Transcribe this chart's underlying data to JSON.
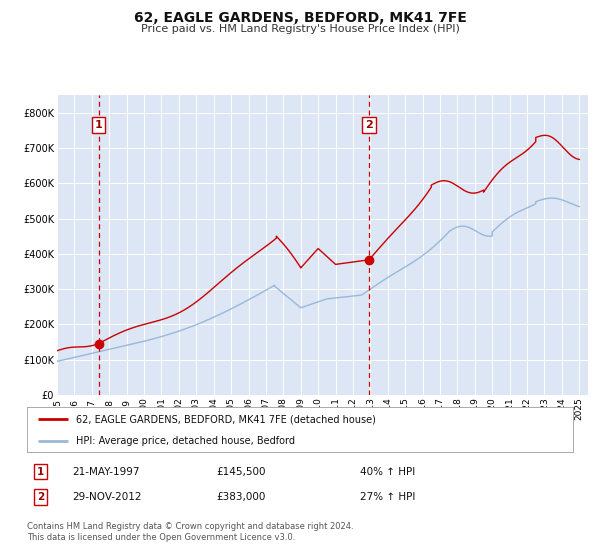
{
  "title": "62, EAGLE GARDENS, BEDFORD, MK41 7FE",
  "subtitle": "Price paid vs. HM Land Registry's House Price Index (HPI)",
  "bg_color": "#ffffff",
  "plot_bg_color": "#dce6f5",
  "grid_color": "#ffffff",
  "red_line_color": "#cc0000",
  "blue_line_color": "#9ab8d8",
  "marker1_date_x": 1997.39,
  "marker1_y": 145500,
  "marker2_date_x": 2012.92,
  "marker2_y": 383000,
  "vline1_x": 1997.39,
  "vline2_x": 2012.92,
  "legend_label_red": "62, EAGLE GARDENS, BEDFORD, MK41 7FE (detached house)",
  "legend_label_blue": "HPI: Average price, detached house, Bedford",
  "annotation1_date": "21-MAY-1997",
  "annotation1_price": "£145,500",
  "annotation1_hpi": "40% ↑ HPI",
  "annotation2_date": "29-NOV-2012",
  "annotation2_price": "£383,000",
  "annotation2_hpi": "27% ↑ HPI",
  "footnote1": "Contains HM Land Registry data © Crown copyright and database right 2024.",
  "footnote2": "This data is licensed under the Open Government Licence v3.0.",
  "ylim_max": 850000,
  "xlim_min": 1995.0,
  "xlim_max": 2025.5,
  "yticks": [
    0,
    100000,
    200000,
    300000,
    400000,
    500000,
    600000,
    700000,
    800000
  ],
  "ytick_labels": [
    "£0",
    "£100K",
    "£200K",
    "£300K",
    "£400K",
    "£500K",
    "£600K",
    "£700K",
    "£800K"
  ],
  "xtick_years": [
    1995,
    1996,
    1997,
    1998,
    1999,
    2000,
    2001,
    2002,
    2003,
    2004,
    2005,
    2006,
    2007,
    2008,
    2009,
    2010,
    2011,
    2012,
    2013,
    2014,
    2015,
    2016,
    2017,
    2018,
    2019,
    2020,
    2021,
    2022,
    2023,
    2024,
    2025
  ]
}
